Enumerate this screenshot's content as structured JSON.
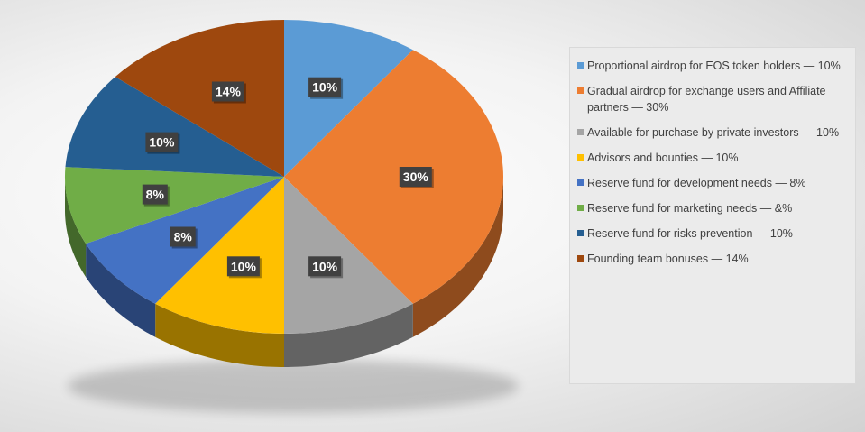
{
  "chart_data": {
    "type": "pie",
    "style": "3d",
    "start_angle_deg": 0,
    "direction": "clockwise",
    "legend_position": "right",
    "slices": [
      {
        "label": "Proportional airdrop for EOS token holders — 10%",
        "value": 10,
        "data_label": "10%",
        "color": "#5B9BD5"
      },
      {
        "label": "Gradual airdrop for exchange users and Affiliate partners — 30%",
        "value": 30,
        "data_label": "30%",
        "color": "#ED7D31"
      },
      {
        "label": "Available for purchase by private investors — 10%",
        "value": 10,
        "data_label": "10%",
        "color": "#A5A5A5"
      },
      {
        "label": "Advisors and bounties — 10%",
        "value": 10,
        "data_label": "10%",
        "color": "#FFC000"
      },
      {
        "label": "Reserve fund for development needs — 8%",
        "value": 8,
        "data_label": "8%",
        "color": "#4472C4"
      },
      {
        "label": "Reserve fund for marketing needs — &%",
        "value": 8,
        "data_label": "8%",
        "color": "#70AD47"
      },
      {
        "label": "Reserve fund for risks prevention — 10%",
        "value": 10,
        "data_label": "10%",
        "color": "#255E91"
      },
      {
        "label": "Founding team bonuses — 14%",
        "value": 14,
        "data_label": "14%",
        "color": "#9E480E"
      }
    ]
  }
}
